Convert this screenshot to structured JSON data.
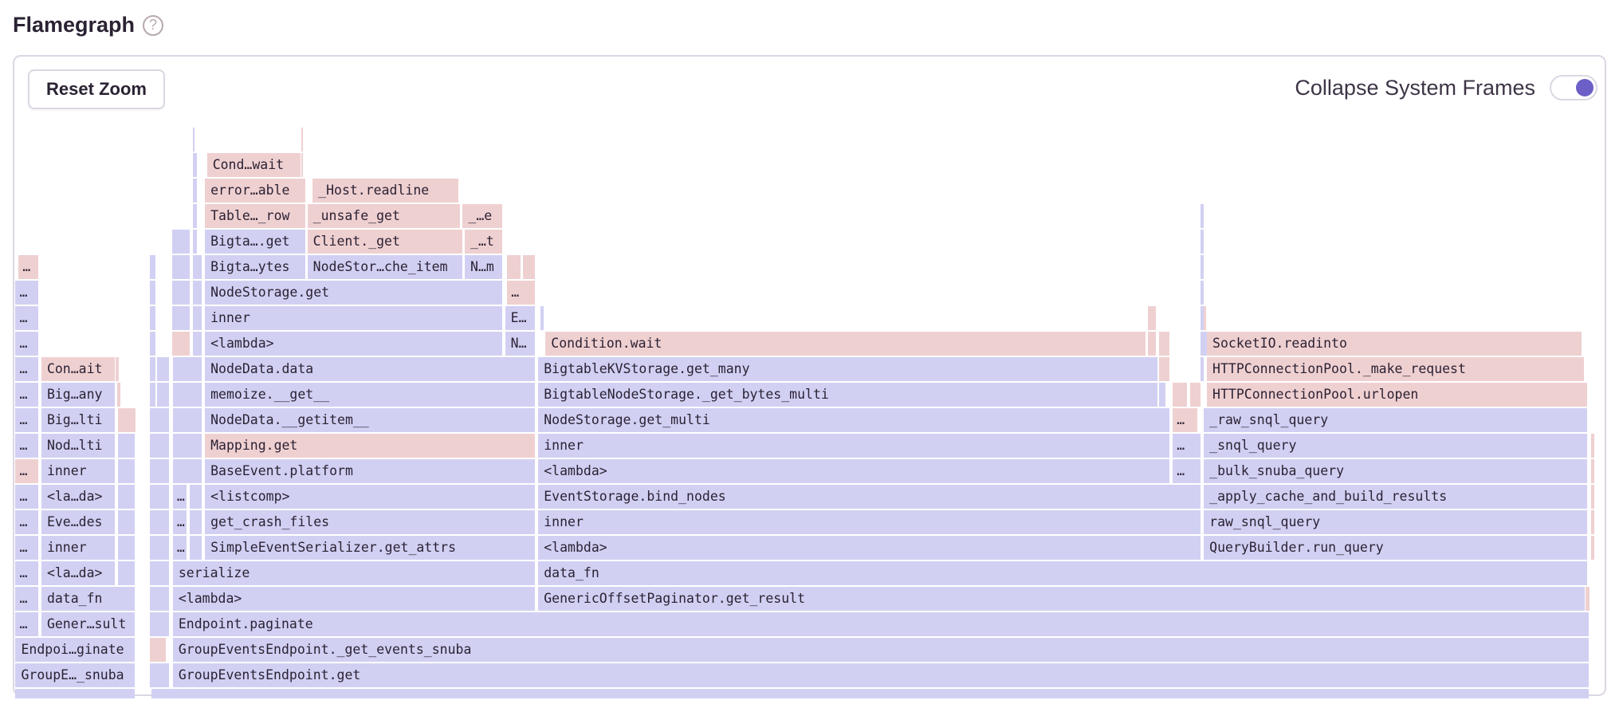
{
  "header": {
    "title": "Flamegraph",
    "help_icon": "question-circle-icon"
  },
  "toolbar": {
    "reset_zoom_label": "Reset Zoom",
    "collapse_system_frames_label": "Collapse System Frames",
    "collapse_system_frames_enabled": true
  },
  "colors": {
    "application_frame": "#d1d0f3",
    "system_frame": "#efd0d1",
    "toggle_accent": "#6c5fc7"
  },
  "frames": [
    {
      "name": "GroupE…_snuba",
      "kind": "application"
    },
    {
      "name": "GroupEventsEndpoint.get",
      "kind": "application"
    },
    {
      "name": "Endpoi…ginate",
      "kind": "application"
    },
    {
      "name": "GroupEventsEndpoint._get_events_snuba",
      "kind": "application"
    },
    {
      "name": "…",
      "kind": "application"
    },
    {
      "name": "Gener…sult",
      "kind": "application"
    },
    {
      "name": "Endpoint.paginate",
      "kind": "application"
    },
    {
      "name": "…",
      "kind": "application"
    },
    {
      "name": "data_fn",
      "kind": "application"
    },
    {
      "name": "<lambda>",
      "kind": "application"
    },
    {
      "name": "GenericOffsetPaginator.get_result",
      "kind": "application"
    },
    {
      "name": "…",
      "kind": "application"
    },
    {
      "name": "<la…da>",
      "kind": "application"
    },
    {
      "name": "serialize",
      "kind": "application"
    },
    {
      "name": "data_fn",
      "kind": "application"
    },
    {
      "name": "…",
      "kind": "application"
    },
    {
      "name": "inner",
      "kind": "application"
    },
    {
      "name": "…",
      "kind": "application"
    },
    {
      "name": "SimpleEventSerializer.get_attrs",
      "kind": "application"
    },
    {
      "name": "<lambda>",
      "kind": "application"
    },
    {
      "name": "QueryBuilder.run_query",
      "kind": "application"
    },
    {
      "name": "…",
      "kind": "application"
    },
    {
      "name": "Eve…des",
      "kind": "application"
    },
    {
      "name": "…",
      "kind": "application"
    },
    {
      "name": "get_crash_files",
      "kind": "application"
    },
    {
      "name": "inner",
      "kind": "application"
    },
    {
      "name": "raw_snql_query",
      "kind": "application"
    },
    {
      "name": "…",
      "kind": "application"
    },
    {
      "name": "<la…da>",
      "kind": "application"
    },
    {
      "name": "…",
      "kind": "application"
    },
    {
      "name": "<listcomp>",
      "kind": "application"
    },
    {
      "name": "EventStorage.bind_nodes",
      "kind": "application"
    },
    {
      "name": "_apply_cache_and_build_results",
      "kind": "application"
    },
    {
      "name": "…",
      "kind": "system"
    },
    {
      "name": "inner",
      "kind": "application"
    },
    {
      "name": "BaseEvent.platform",
      "kind": "application"
    },
    {
      "name": "<lambda>",
      "kind": "application"
    },
    {
      "name": "…",
      "kind": "application"
    },
    {
      "name": "_bulk_snuba_query",
      "kind": "application"
    },
    {
      "name": "…",
      "kind": "application"
    },
    {
      "name": "Nod…lti",
      "kind": "application"
    },
    {
      "name": "Mapping.get",
      "kind": "system"
    },
    {
      "name": "inner",
      "kind": "application"
    },
    {
      "name": "…",
      "kind": "application"
    },
    {
      "name": "_snql_query",
      "kind": "application"
    },
    {
      "name": "…",
      "kind": "application"
    },
    {
      "name": "Big…lti",
      "kind": "application"
    },
    {
      "name": "NodeData.__getitem__",
      "kind": "application"
    },
    {
      "name": "NodeStorage.get_multi",
      "kind": "application"
    },
    {
      "name": "…",
      "kind": "system"
    },
    {
      "name": "_raw_snql_query",
      "kind": "application"
    },
    {
      "name": "…",
      "kind": "application"
    },
    {
      "name": "Big…any",
      "kind": "application"
    },
    {
      "name": "memoize.__get__",
      "kind": "application"
    },
    {
      "name": "BigtableNodeStorage._get_bytes_multi",
      "kind": "application"
    },
    {
      "name": "HTTPConnectionPool.urlopen",
      "kind": "system"
    },
    {
      "name": "…",
      "kind": "application"
    },
    {
      "name": "Con…ait",
      "kind": "system"
    },
    {
      "name": "NodeData.data",
      "kind": "application"
    },
    {
      "name": "BigtableKVStorage.get_many",
      "kind": "application"
    },
    {
      "name": "HTTPConnectionPool._make_request",
      "kind": "system"
    },
    {
      "name": "…",
      "kind": "application"
    },
    {
      "name": "<lambda>",
      "kind": "application"
    },
    {
      "name": "N…",
      "kind": "application"
    },
    {
      "name": "Condition.wait",
      "kind": "system"
    },
    {
      "name": "SocketIO.readinto",
      "kind": "system"
    },
    {
      "name": "…",
      "kind": "application"
    },
    {
      "name": "inner",
      "kind": "application"
    },
    {
      "name": "E…",
      "kind": "application"
    },
    {
      "name": "…",
      "kind": "application"
    },
    {
      "name": "NodeStorage.get",
      "kind": "application"
    },
    {
      "name": "…",
      "kind": "system"
    },
    {
      "name": "…",
      "kind": "system"
    },
    {
      "name": "Bigta…ytes",
      "kind": "application"
    },
    {
      "name": "NodeStor…che_item",
      "kind": "application"
    },
    {
      "name": "N…m",
      "kind": "application"
    },
    {
      "name": "Bigta….get",
      "kind": "application"
    },
    {
      "name": "Client._get",
      "kind": "system"
    },
    {
      "name": "_…t",
      "kind": "system"
    },
    {
      "name": "Table…_row",
      "kind": "system"
    },
    {
      "name": "_unsafe_get",
      "kind": "system"
    },
    {
      "name": "_…e",
      "kind": "system"
    },
    {
      "name": "error…able",
      "kind": "system"
    },
    {
      "name": "_Host.readline",
      "kind": "system"
    },
    {
      "name": "Cond…wait",
      "kind": "system"
    }
  ]
}
